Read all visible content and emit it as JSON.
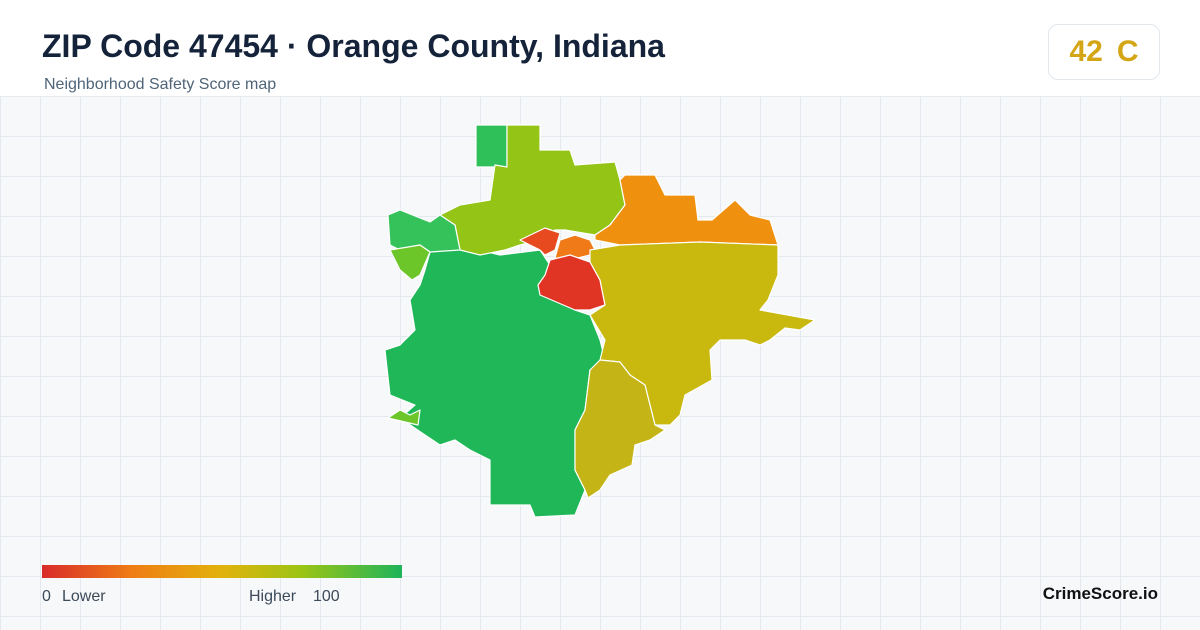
{
  "header": {
    "title": "ZIP Code 47454 · Orange County, Indiana",
    "subtitle": "Neighborhood Safety Score map"
  },
  "score": {
    "value": 42,
    "grade": "C"
  },
  "legend": {
    "min": 0,
    "min_label": "Lower",
    "max_label": "Higher",
    "max": 100
  },
  "brand": "CrimeScore.io"
}
